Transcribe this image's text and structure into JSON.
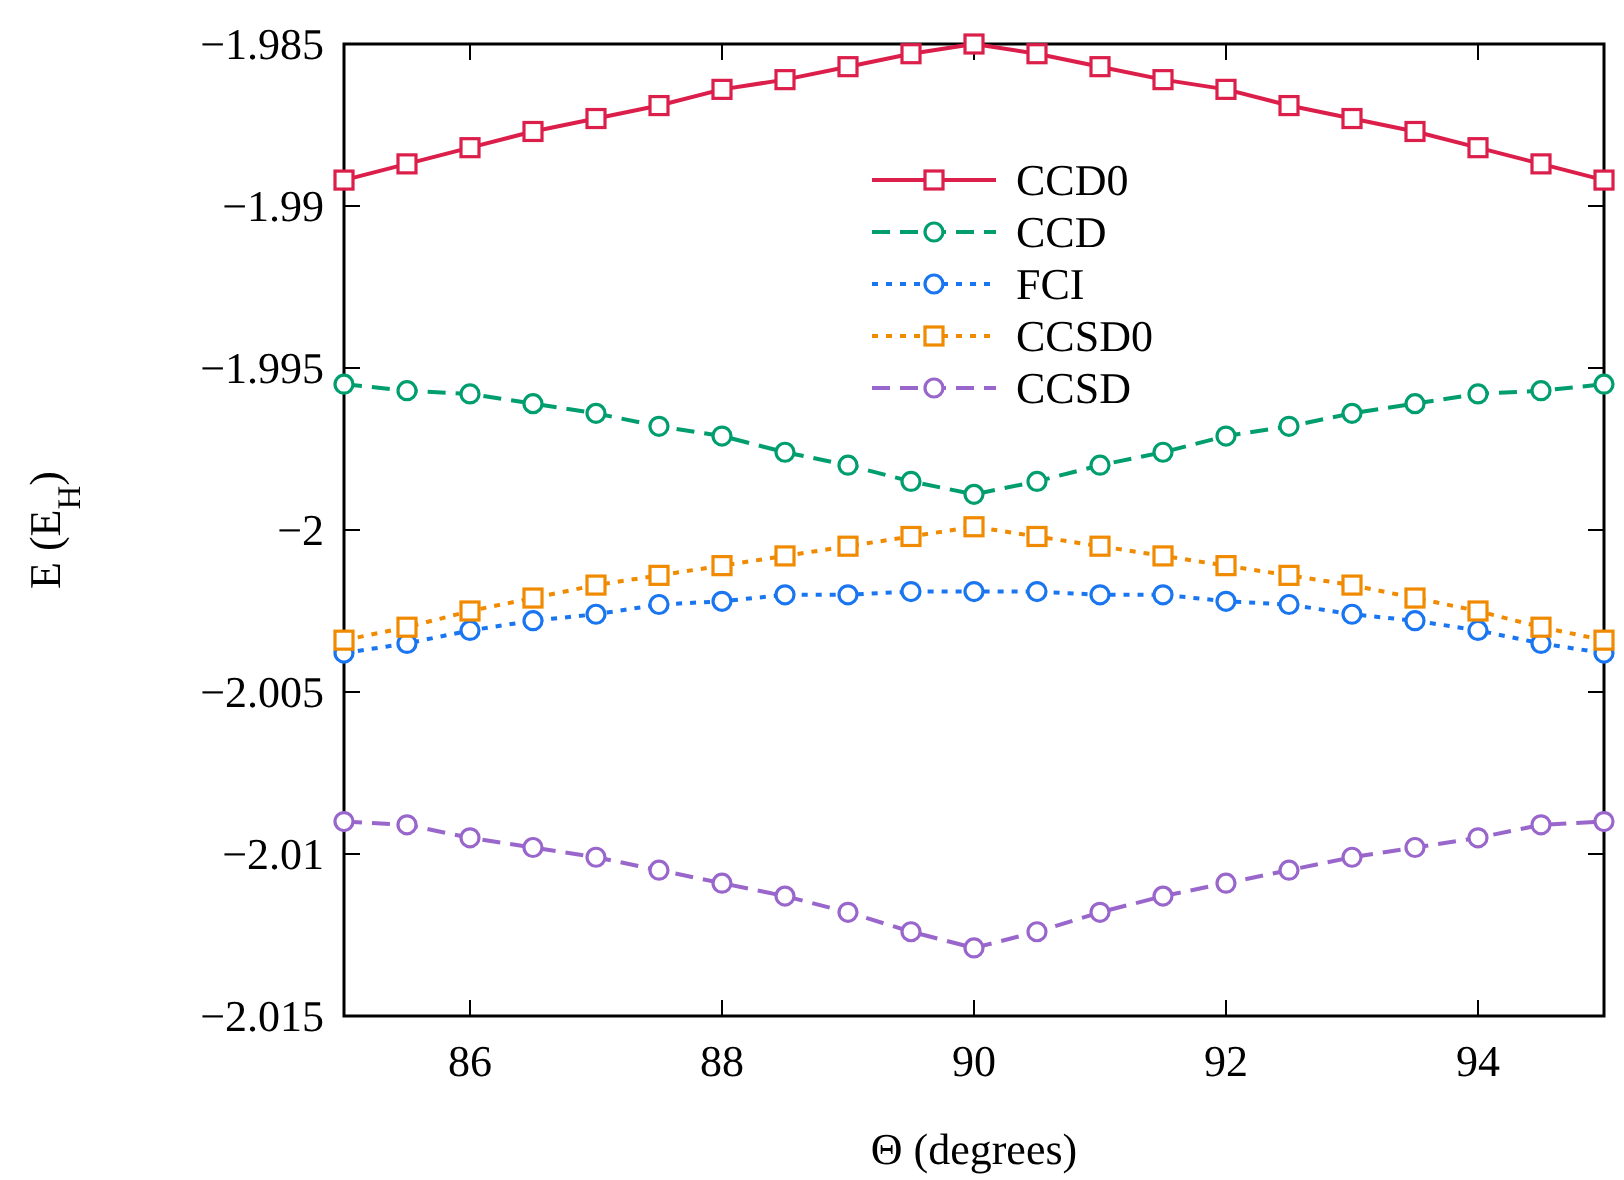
{
  "chart_data": {
    "type": "line",
    "xlabel": "Θ (degrees)",
    "ylabel": "E (E$_{H}$)",
    "x": [
      85,
      85.5,
      86,
      86.5,
      87,
      87.5,
      88,
      88.5,
      89,
      89.5,
      90,
      90.5,
      91,
      91.5,
      92,
      92.5,
      93,
      93.5,
      94,
      94.5,
      95
    ],
    "xlim": [
      85,
      95
    ],
    "xticks": [
      86,
      88,
      90,
      92,
      94
    ],
    "ylim": [
      -2.015,
      -1.985
    ],
    "yticks": [
      {
        "value": -2.015,
        "label": "−2.015"
      },
      {
        "value": -2.01,
        "label": "−2.01"
      },
      {
        "value": -2.005,
        "label": "−2.005"
      },
      {
        "value": -2,
        "label": "−2"
      },
      {
        "value": -1.995,
        "label": "−1.995"
      },
      {
        "value": -1.99,
        "label": "−1.99"
      },
      {
        "value": -1.985,
        "label": "−1.985"
      }
    ],
    "legend": "top",
    "grid": false,
    "series": [
      {
        "name": "CCD0",
        "color": "#dc1e4a",
        "marker": "square",
        "line_style": "solid",
        "values": [
          -1.9892,
          -1.9887,
          -1.9882,
          -1.9877,
          -1.9873,
          -1.9869,
          -1.9864,
          -1.9861,
          -1.9857,
          -1.9853,
          -1.985,
          -1.9853,
          -1.9857,
          -1.9861,
          -1.9864,
          -1.9869,
          -1.9873,
          -1.9877,
          -1.9882,
          -1.9887,
          -1.9892
        ]
      },
      {
        "name": "CCD",
        "color": "#009e6e",
        "marker": "circle",
        "line_style": "dashed",
        "values": [
          -1.9955,
          -1.9957,
          -1.9958,
          -1.9961,
          -1.9964,
          -1.9968,
          -1.9971,
          -1.9976,
          -1.998,
          -1.9985,
          -1.9989,
          -1.9985,
          -1.998,
          -1.9976,
          -1.9971,
          -1.9968,
          -1.9964,
          -1.9961,
          -1.9958,
          -1.9957,
          -1.9955
        ]
      },
      {
        "name": "FCI",
        "color": "#1a75f0",
        "marker": "circle",
        "line_style": "dotted",
        "values": [
          -2.0038,
          -2.0035,
          -2.0031,
          -2.0028,
          -2.0026,
          -2.0023,
          -2.0022,
          -2.002,
          -2.002,
          -2.0019,
          -2.0019,
          -2.0019,
          -2.002,
          -2.002,
          -2.0022,
          -2.0023,
          -2.0026,
          -2.0028,
          -2.0031,
          -2.0035,
          -2.0038
        ]
      },
      {
        "name": "CCSD0",
        "color": "#f08a00",
        "marker": "square",
        "line_style": "dotted",
        "values": [
          -2.0034,
          -2.003,
          -2.0025,
          -2.0021,
          -2.0017,
          -2.0014,
          -2.0011,
          -2.0008,
          -2.0005,
          -2.0002,
          -1.9999,
          -2.0002,
          -2.0005,
          -2.0008,
          -2.0011,
          -2.0014,
          -2.0017,
          -2.0021,
          -2.0025,
          -2.003,
          -2.0034
        ]
      },
      {
        "name": "CCSD",
        "color": "#9966cc",
        "marker": "circle",
        "line_style": "dashed",
        "values": [
          -2.009,
          -2.0091,
          -2.0095,
          -2.0098,
          -2.0101,
          -2.0105,
          -2.0109,
          -2.0113,
          -2.0118,
          -2.0124,
          -2.0129,
          -2.0124,
          -2.0118,
          -2.0113,
          -2.0109,
          -2.0105,
          -2.0101,
          -2.0098,
          -2.0095,
          -2.0091,
          -2.009
        ]
      }
    ]
  }
}
